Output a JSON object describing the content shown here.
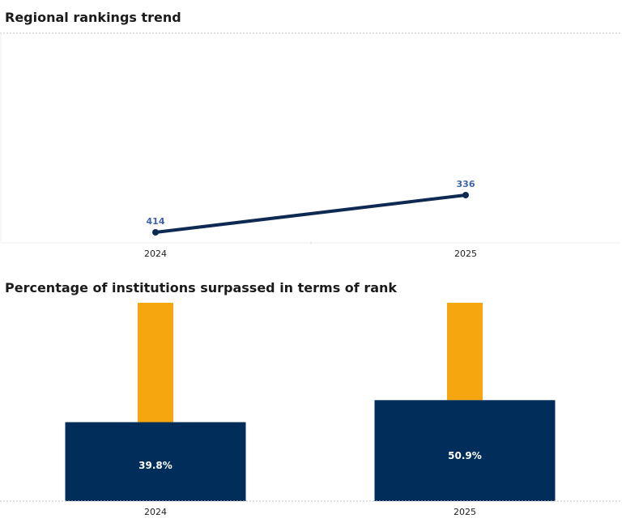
{
  "chart_data": [
    {
      "type": "line",
      "title": "Regional rankings trend",
      "categories": [
        "2024",
        "2025"
      ],
      "series": [
        {
          "values": [
            414,
            336
          ]
        }
      ],
      "data_labels": [
        "414",
        "336"
      ],
      "y_inverted": true,
      "colors": {
        "line": "#0f2a52",
        "label": "#3f64a6"
      }
    },
    {
      "type": "bar",
      "title": "Percentage of institutions surpassed in terms of rank",
      "categories": [
        "2024",
        "2025"
      ],
      "values": [
        39.8,
        50.9
      ],
      "data_labels": [
        "39.8%",
        "50.9%"
      ],
      "ylim": [
        0,
        100
      ],
      "colors": {
        "bar": "#002d5a",
        "marker": "#f6a70f",
        "label": "#ffffff"
      }
    }
  ]
}
